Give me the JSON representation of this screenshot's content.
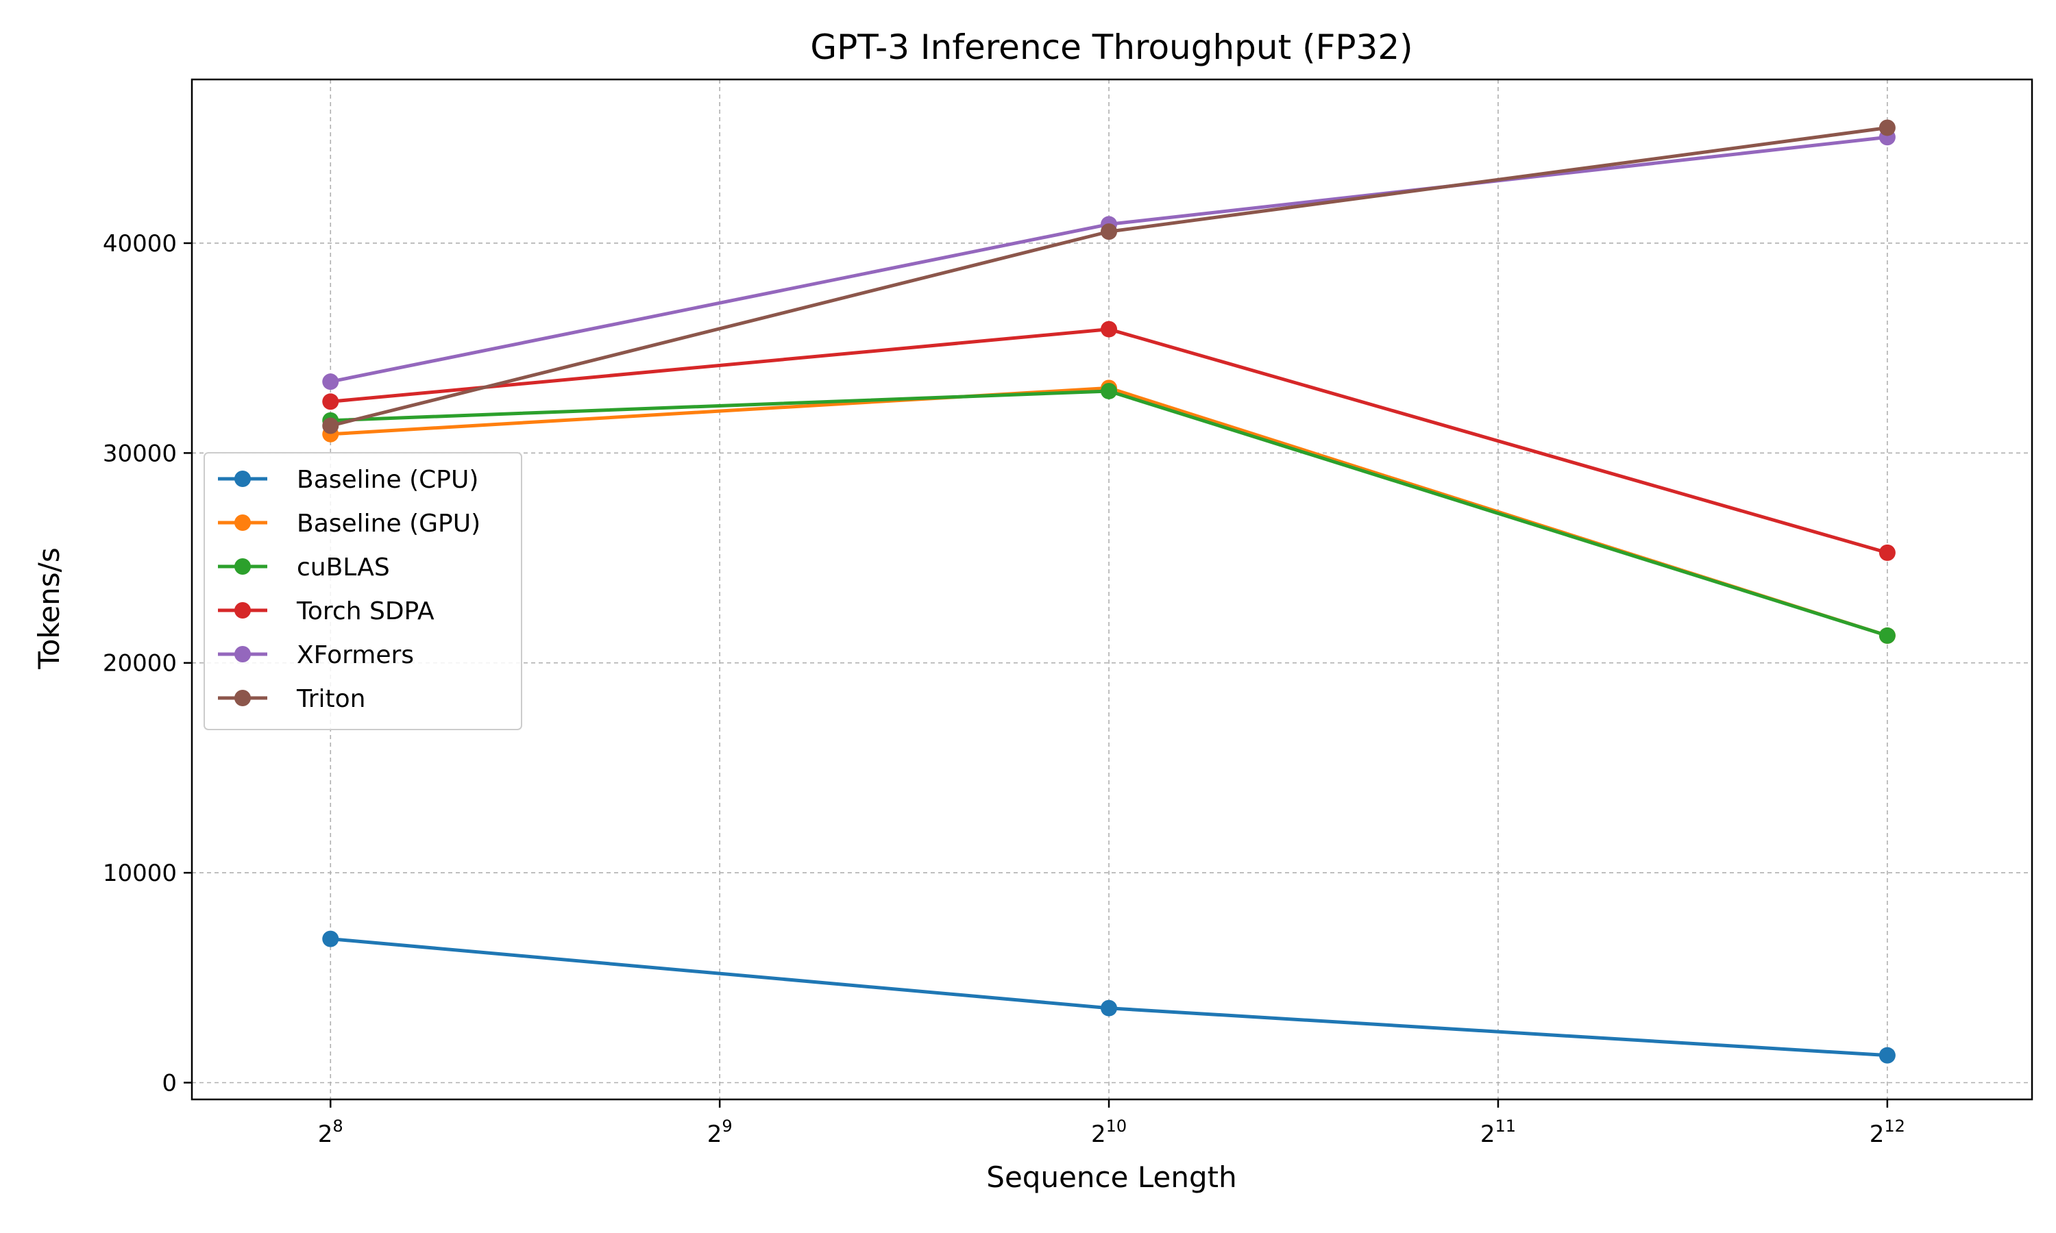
{
  "chart_data": {
    "type": "line",
    "title": "GPT-3 Inference Throughput (FP32)",
    "xlabel": "Sequence Length",
    "ylabel": "Tokens/s",
    "x_scale": "log2",
    "x": [
      256,
      1024,
      4096
    ],
    "x_ticks": [
      256,
      512,
      1024,
      2048,
      4096
    ],
    "x_tick_labels": [
      {
        "base": "2",
        "exp": "8"
      },
      {
        "base": "2",
        "exp": "9"
      },
      {
        "base": "2",
        "exp": "10"
      },
      {
        "base": "2",
        "exp": "11"
      },
      {
        "base": "2",
        "exp": "12"
      }
    ],
    "xlim": [
      200,
      5300
    ],
    "ylim": [
      -800,
      47800
    ],
    "y_ticks": [
      0,
      10000,
      20000,
      30000,
      40000
    ],
    "y_tick_labels": [
      "0",
      "10000",
      "20000",
      "30000",
      "40000"
    ],
    "grid": true,
    "legend_position": "center-left",
    "series": [
      {
        "name": "Baseline (CPU)",
        "color": "#1f77b4",
        "values": [
          6850,
          3550,
          1300
        ]
      },
      {
        "name": "Baseline (GPU)",
        "color": "#ff7f0e",
        "values": [
          30900,
          33100,
          21300
        ]
      },
      {
        "name": "cuBLAS",
        "color": "#2ca02c",
        "values": [
          31550,
          32950,
          21300
        ]
      },
      {
        "name": "Torch SDPA",
        "color": "#d62728",
        "values": [
          32450,
          35900,
          25250
        ]
      },
      {
        "name": "XFormers",
        "color": "#9467bd",
        "values": [
          33400,
          40900,
          45050
        ]
      },
      {
        "name": "Triton",
        "color": "#8c564b",
        "values": [
          31300,
          40550,
          45500
        ]
      }
    ]
  }
}
